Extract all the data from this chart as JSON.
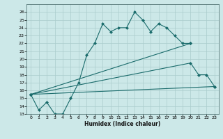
{
  "xlabel": "Humidex (Indice chaleur)",
  "bg_color": "#cce8e8",
  "line_color": "#1a6b6b",
  "grid_color": "#aacccc",
  "ylim": [
    13,
    27
  ],
  "xlim": [
    -0.5,
    23.5
  ],
  "yticks": [
    13,
    14,
    15,
    16,
    17,
    18,
    19,
    20,
    21,
    22,
    23,
    24,
    25,
    26
  ],
  "xticks": [
    0,
    1,
    2,
    3,
    4,
    5,
    6,
    7,
    8,
    9,
    10,
    11,
    12,
    13,
    14,
    15,
    16,
    17,
    18,
    19,
    20,
    21,
    22,
    23
  ],
  "line1_x": [
    0,
    1,
    2,
    3,
    4,
    5,
    6,
    7,
    8,
    9,
    10,
    11,
    12,
    13,
    14,
    15,
    16,
    17,
    18,
    19,
    20
  ],
  "line1_y": [
    15.5,
    13.5,
    14.5,
    13.0,
    13.0,
    15.0,
    17.0,
    20.5,
    22.0,
    24.5,
    23.5,
    24.0,
    24.0,
    26.0,
    25.0,
    23.5,
    24.5,
    24.0,
    23.0,
    22.0,
    22.0
  ],
  "line2_x": [
    0,
    20
  ],
  "line2_y": [
    15.5,
    22.0
  ],
  "line3_x": [
    0,
    23
  ],
  "line3_y": [
    15.5,
    16.5
  ],
  "line4_x": [
    0,
    20,
    21,
    22,
    23
  ],
  "line4_y": [
    15.5,
    19.5,
    18.0,
    18.0,
    16.5
  ]
}
